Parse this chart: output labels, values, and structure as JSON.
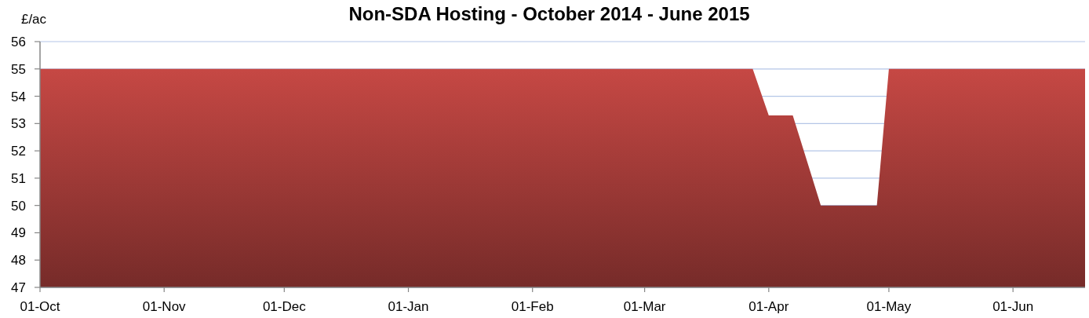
{
  "chart_data": {
    "type": "area",
    "title": "Non-SDA Hosting - October 2014 - June 2015",
    "ylabel": "£/ac",
    "x": [
      "2014-10-01",
      "2015-03-28",
      "2015-04-01",
      "2015-04-07",
      "2015-04-14",
      "2015-04-28",
      "2015-05-01",
      "2015-06-19"
    ],
    "series": [
      {
        "color": "#a33b38",
        "values": [
          55,
          55,
          53.3,
          53.3,
          50,
          50,
          55,
          55
        ]
      }
    ],
    "xlim": [
      "2014-10-01",
      "2015-06-19"
    ],
    "xticks": [
      {
        "value": "2014-10-01",
        "label": "01-Oct"
      },
      {
        "value": "2014-11-01",
        "label": "01-Nov"
      },
      {
        "value": "2014-12-01",
        "label": "01-Dec"
      },
      {
        "value": "2015-01-01",
        "label": "01-Jan"
      },
      {
        "value": "2015-02-01",
        "label": "01-Feb"
      },
      {
        "value": "2015-03-01",
        "label": "01-Mar"
      },
      {
        "value": "2015-04-01",
        "label": "01-Apr"
      },
      {
        "value": "2015-05-01",
        "label": "01-May"
      },
      {
        "value": "2015-06-01",
        "label": "01-Jun"
      }
    ],
    "ylim": [
      47,
      56
    ],
    "yticks": [
      47,
      48,
      49,
      50,
      51,
      52,
      53,
      54,
      55,
      56
    ],
    "grid": "y"
  }
}
